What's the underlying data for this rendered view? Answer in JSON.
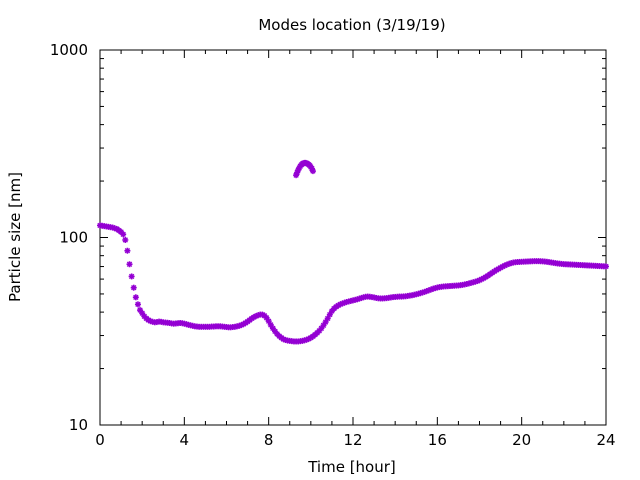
{
  "chart_data": {
    "type": "scatter",
    "title": "Modes location (3/19/19)",
    "xlabel": "Time [hour]",
    "ylabel": "Particle size [nm]",
    "xlim": [
      0,
      24
    ],
    "ylim": [
      10,
      1000
    ],
    "yscale": "log",
    "grid": false,
    "x_ticks": [
      0,
      4,
      8,
      12,
      16,
      20,
      24
    ],
    "y_ticks": [
      10,
      100,
      1000
    ],
    "marker_color": "#9400D3",
    "series": [
      {
        "points": [
          [
            0.0,
            116
          ],
          [
            0.1,
            115.5
          ],
          [
            0.2,
            115
          ],
          [
            0.3,
            114.5
          ],
          [
            0.4,
            114
          ],
          [
            0.5,
            113.5
          ],
          [
            0.6,
            113
          ],
          [
            0.7,
            112
          ],
          [
            0.8,
            111
          ],
          [
            0.9,
            109
          ],
          [
            1.0,
            107
          ],
          [
            1.1,
            104
          ],
          [
            1.2,
            97
          ],
          [
            1.3,
            85
          ],
          [
            1.4,
            72
          ],
          [
            1.5,
            62
          ],
          [
            1.6,
            54
          ],
          [
            1.7,
            48
          ],
          [
            1.8,
            44
          ],
          [
            1.9,
            41
          ],
          [
            2.0,
            39.5
          ],
          [
            2.1,
            38
          ],
          [
            2.2,
            37
          ],
          [
            2.3,
            36.3
          ],
          [
            2.4,
            35.8
          ],
          [
            2.5,
            35.5
          ],
          [
            2.6,
            35.3
          ],
          [
            2.7,
            35.4
          ],
          [
            2.8,
            35.6
          ],
          [
            2.9,
            35.5
          ],
          [
            3.0,
            35.3
          ],
          [
            3.1,
            35.2
          ],
          [
            3.2,
            35.1
          ],
          [
            3.3,
            35
          ],
          [
            3.4,
            34.8
          ],
          [
            3.5,
            34.7
          ],
          [
            3.6,
            34.8
          ],
          [
            3.7,
            34.9
          ],
          [
            3.8,
            35
          ],
          [
            3.9,
            34.9
          ],
          [
            4.0,
            34.7
          ],
          [
            4.1,
            34.5
          ],
          [
            4.2,
            34.2
          ],
          [
            4.3,
            34
          ],
          [
            4.4,
            33.8
          ],
          [
            4.5,
            33.6
          ],
          [
            4.6,
            33.5
          ],
          [
            4.7,
            33.4
          ],
          [
            4.8,
            33.4
          ],
          [
            4.9,
            33.4
          ],
          [
            5.0,
            33.4
          ],
          [
            5.1,
            33.4
          ],
          [
            5.2,
            33.4
          ],
          [
            5.3,
            33.5
          ],
          [
            5.4,
            33.5
          ],
          [
            5.5,
            33.6
          ],
          [
            5.6,
            33.6
          ],
          [
            5.7,
            33.6
          ],
          [
            5.8,
            33.5
          ],
          [
            5.9,
            33.4
          ],
          [
            6.0,
            33.3
          ],
          [
            6.1,
            33.2
          ],
          [
            6.2,
            33.2
          ],
          [
            6.3,
            33.3
          ],
          [
            6.4,
            33.4
          ],
          [
            6.5,
            33.6
          ],
          [
            6.6,
            33.8
          ],
          [
            6.7,
            34.1
          ],
          [
            6.8,
            34.5
          ],
          [
            6.9,
            35
          ],
          [
            7.0,
            35.6
          ],
          [
            7.1,
            36.3
          ],
          [
            7.2,
            37
          ],
          [
            7.3,
            37.6
          ],
          [
            7.4,
            38.1
          ],
          [
            7.5,
            38.5
          ],
          [
            7.6,
            38.8
          ],
          [
            7.7,
            38.8
          ],
          [
            7.8,
            38.3
          ],
          [
            7.9,
            37.3
          ],
          [
            8.0,
            35.8
          ],
          [
            8.1,
            34.2
          ],
          [
            8.2,
            32.8
          ],
          [
            8.3,
            31.6
          ],
          [
            8.4,
            30.6
          ],
          [
            8.5,
            29.8
          ],
          [
            8.6,
            29.2
          ],
          [
            8.7,
            28.7
          ],
          [
            8.8,
            28.4
          ],
          [
            8.9,
            28.2
          ],
          [
            9.0,
            28.1
          ],
          [
            9.1,
            28
          ],
          [
            9.2,
            27.9
          ],
          [
            9.3,
            27.9
          ],
          [
            9.4,
            27.9
          ],
          [
            9.5,
            28
          ],
          [
            9.6,
            28.1
          ],
          [
            9.7,
            28.3
          ],
          [
            9.8,
            28.5
          ],
          [
            9.9,
            28.8
          ],
          [
            10.0,
            29.2
          ],
          [
            10.1,
            29.7
          ],
          [
            10.2,
            30.3
          ],
          [
            10.3,
            31
          ],
          [
            10.4,
            31.8
          ],
          [
            10.5,
            32.8
          ],
          [
            10.6,
            34
          ],
          [
            10.7,
            35.4
          ],
          [
            10.8,
            37
          ],
          [
            10.9,
            38.8
          ],
          [
            11.0,
            40.5
          ],
          [
            11.1,
            41.8
          ],
          [
            11.2,
            42.7
          ],
          [
            11.3,
            43.4
          ],
          [
            11.4,
            44
          ],
          [
            11.5,
            44.5
          ],
          [
            11.6,
            44.9
          ],
          [
            11.7,
            45.3
          ],
          [
            11.8,
            45.6
          ],
          [
            11.9,
            45.9
          ],
          [
            12.0,
            46.2
          ],
          [
            12.1,
            46.5
          ],
          [
            12.2,
            46.8
          ],
          [
            12.3,
            47.2
          ],
          [
            12.4,
            47.6
          ],
          [
            12.5,
            48
          ],
          [
            12.6,
            48.3
          ],
          [
            12.7,
            48.4
          ],
          [
            12.8,
            48.3
          ],
          [
            12.9,
            48.1
          ],
          [
            13.0,
            47.9
          ],
          [
            13.1,
            47.6
          ],
          [
            13.2,
            47.4
          ],
          [
            13.3,
            47.3
          ],
          [
            13.4,
            47.3
          ],
          [
            13.5,
            47.4
          ],
          [
            13.6,
            47.5
          ],
          [
            13.7,
            47.7
          ],
          [
            13.8,
            47.9
          ],
          [
            13.9,
            48.1
          ],
          [
            14.0,
            48.2
          ],
          [
            14.1,
            48.3
          ],
          [
            14.2,
            48.4
          ],
          [
            14.3,
            48.4
          ],
          [
            14.4,
            48.5
          ],
          [
            14.5,
            48.6
          ],
          [
            14.6,
            48.8
          ],
          [
            14.7,
            49
          ],
          [
            14.8,
            49.2
          ],
          [
            14.9,
            49.5
          ],
          [
            15.0,
            49.8
          ],
          [
            15.1,
            50.1
          ],
          [
            15.2,
            50.5
          ],
          [
            15.3,
            50.9
          ],
          [
            15.4,
            51.3
          ],
          [
            15.5,
            51.8
          ],
          [
            15.6,
            52.3
          ],
          [
            15.7,
            52.8
          ],
          [
            15.8,
            53.3
          ],
          [
            15.9,
            53.7
          ],
          [
            16.0,
            54.1
          ],
          [
            16.1,
            54.4
          ],
          [
            16.2,
            54.6
          ],
          [
            16.3,
            54.8
          ],
          [
            16.4,
            54.9
          ],
          [
            16.5,
            55
          ],
          [
            16.6,
            55.1
          ],
          [
            16.7,
            55.2
          ],
          [
            16.8,
            55.3
          ],
          [
            16.9,
            55.4
          ],
          [
            17.0,
            55.5
          ],
          [
            17.1,
            55.7
          ],
          [
            17.2,
            55.9
          ],
          [
            17.3,
            56.2
          ],
          [
            17.4,
            56.5
          ],
          [
            17.5,
            56.9
          ],
          [
            17.6,
            57.3
          ],
          [
            17.7,
            57.7
          ],
          [
            17.8,
            58.1
          ],
          [
            17.9,
            58.6
          ],
          [
            18.0,
            59.2
          ],
          [
            18.1,
            59.9
          ],
          [
            18.2,
            60.7
          ],
          [
            18.3,
            61.6
          ],
          [
            18.4,
            62.6
          ],
          [
            18.5,
            63.7
          ],
          [
            18.6,
            64.8
          ],
          [
            18.7,
            65.9
          ],
          [
            18.8,
            67
          ],
          [
            18.9,
            68
          ],
          [
            19.0,
            69
          ],
          [
            19.1,
            70
          ],
          [
            19.2,
            70.9
          ],
          [
            19.3,
            71.7
          ],
          [
            19.4,
            72.4
          ],
          [
            19.5,
            73
          ],
          [
            19.6,
            73.5
          ],
          [
            19.7,
            73.8
          ],
          [
            19.8,
            74
          ],
          [
            19.9,
            74.1
          ],
          [
            20.0,
            74.2
          ],
          [
            20.1,
            74.3
          ],
          [
            20.2,
            74.4
          ],
          [
            20.3,
            74.5
          ],
          [
            20.4,
            74.6
          ],
          [
            20.5,
            74.7
          ],
          [
            20.6,
            74.8
          ],
          [
            20.7,
            74.8
          ],
          [
            20.8,
            74.8
          ],
          [
            20.9,
            74.7
          ],
          [
            21.0,
            74.6
          ],
          [
            21.1,
            74.4
          ],
          [
            21.2,
            74.2
          ],
          [
            21.3,
            73.9
          ],
          [
            21.4,
            73.6
          ],
          [
            21.5,
            73.3
          ],
          [
            21.6,
            73
          ],
          [
            21.7,
            72.7
          ],
          [
            21.8,
            72.5
          ],
          [
            21.9,
            72.3
          ],
          [
            22.0,
            72.1
          ],
          [
            22.1,
            72
          ],
          [
            22.2,
            71.9
          ],
          [
            22.3,
            71.8
          ],
          [
            22.4,
            71.7
          ],
          [
            22.5,
            71.6
          ],
          [
            22.6,
            71.5
          ],
          [
            22.7,
            71.4
          ],
          [
            22.8,
            71.3
          ],
          [
            22.9,
            71.2
          ],
          [
            23.0,
            71.1
          ],
          [
            23.1,
            71
          ],
          [
            23.2,
            70.9
          ],
          [
            23.3,
            70.8
          ],
          [
            23.4,
            70.7
          ],
          [
            23.5,
            70.6
          ],
          [
            23.6,
            70.5
          ],
          [
            23.7,
            70.4
          ],
          [
            23.8,
            70.3
          ],
          [
            23.9,
            70.2
          ],
          [
            24.0,
            70.1
          ]
        ]
      },
      {
        "points": [
          [
            9.3,
            215
          ],
          [
            9.35,
            222
          ],
          [
            9.4,
            229
          ],
          [
            9.45,
            235
          ],
          [
            9.5,
            240
          ],
          [
            9.55,
            244
          ],
          [
            9.6,
            247
          ],
          [
            9.65,
            249
          ],
          [
            9.7,
            250
          ],
          [
            9.75,
            250
          ],
          [
            9.8,
            249
          ],
          [
            9.85,
            247
          ],
          [
            9.9,
            245
          ],
          [
            9.95,
            242
          ],
          [
            10.0,
            238
          ],
          [
            10.05,
            233
          ],
          [
            10.1,
            226
          ]
        ]
      }
    ]
  }
}
